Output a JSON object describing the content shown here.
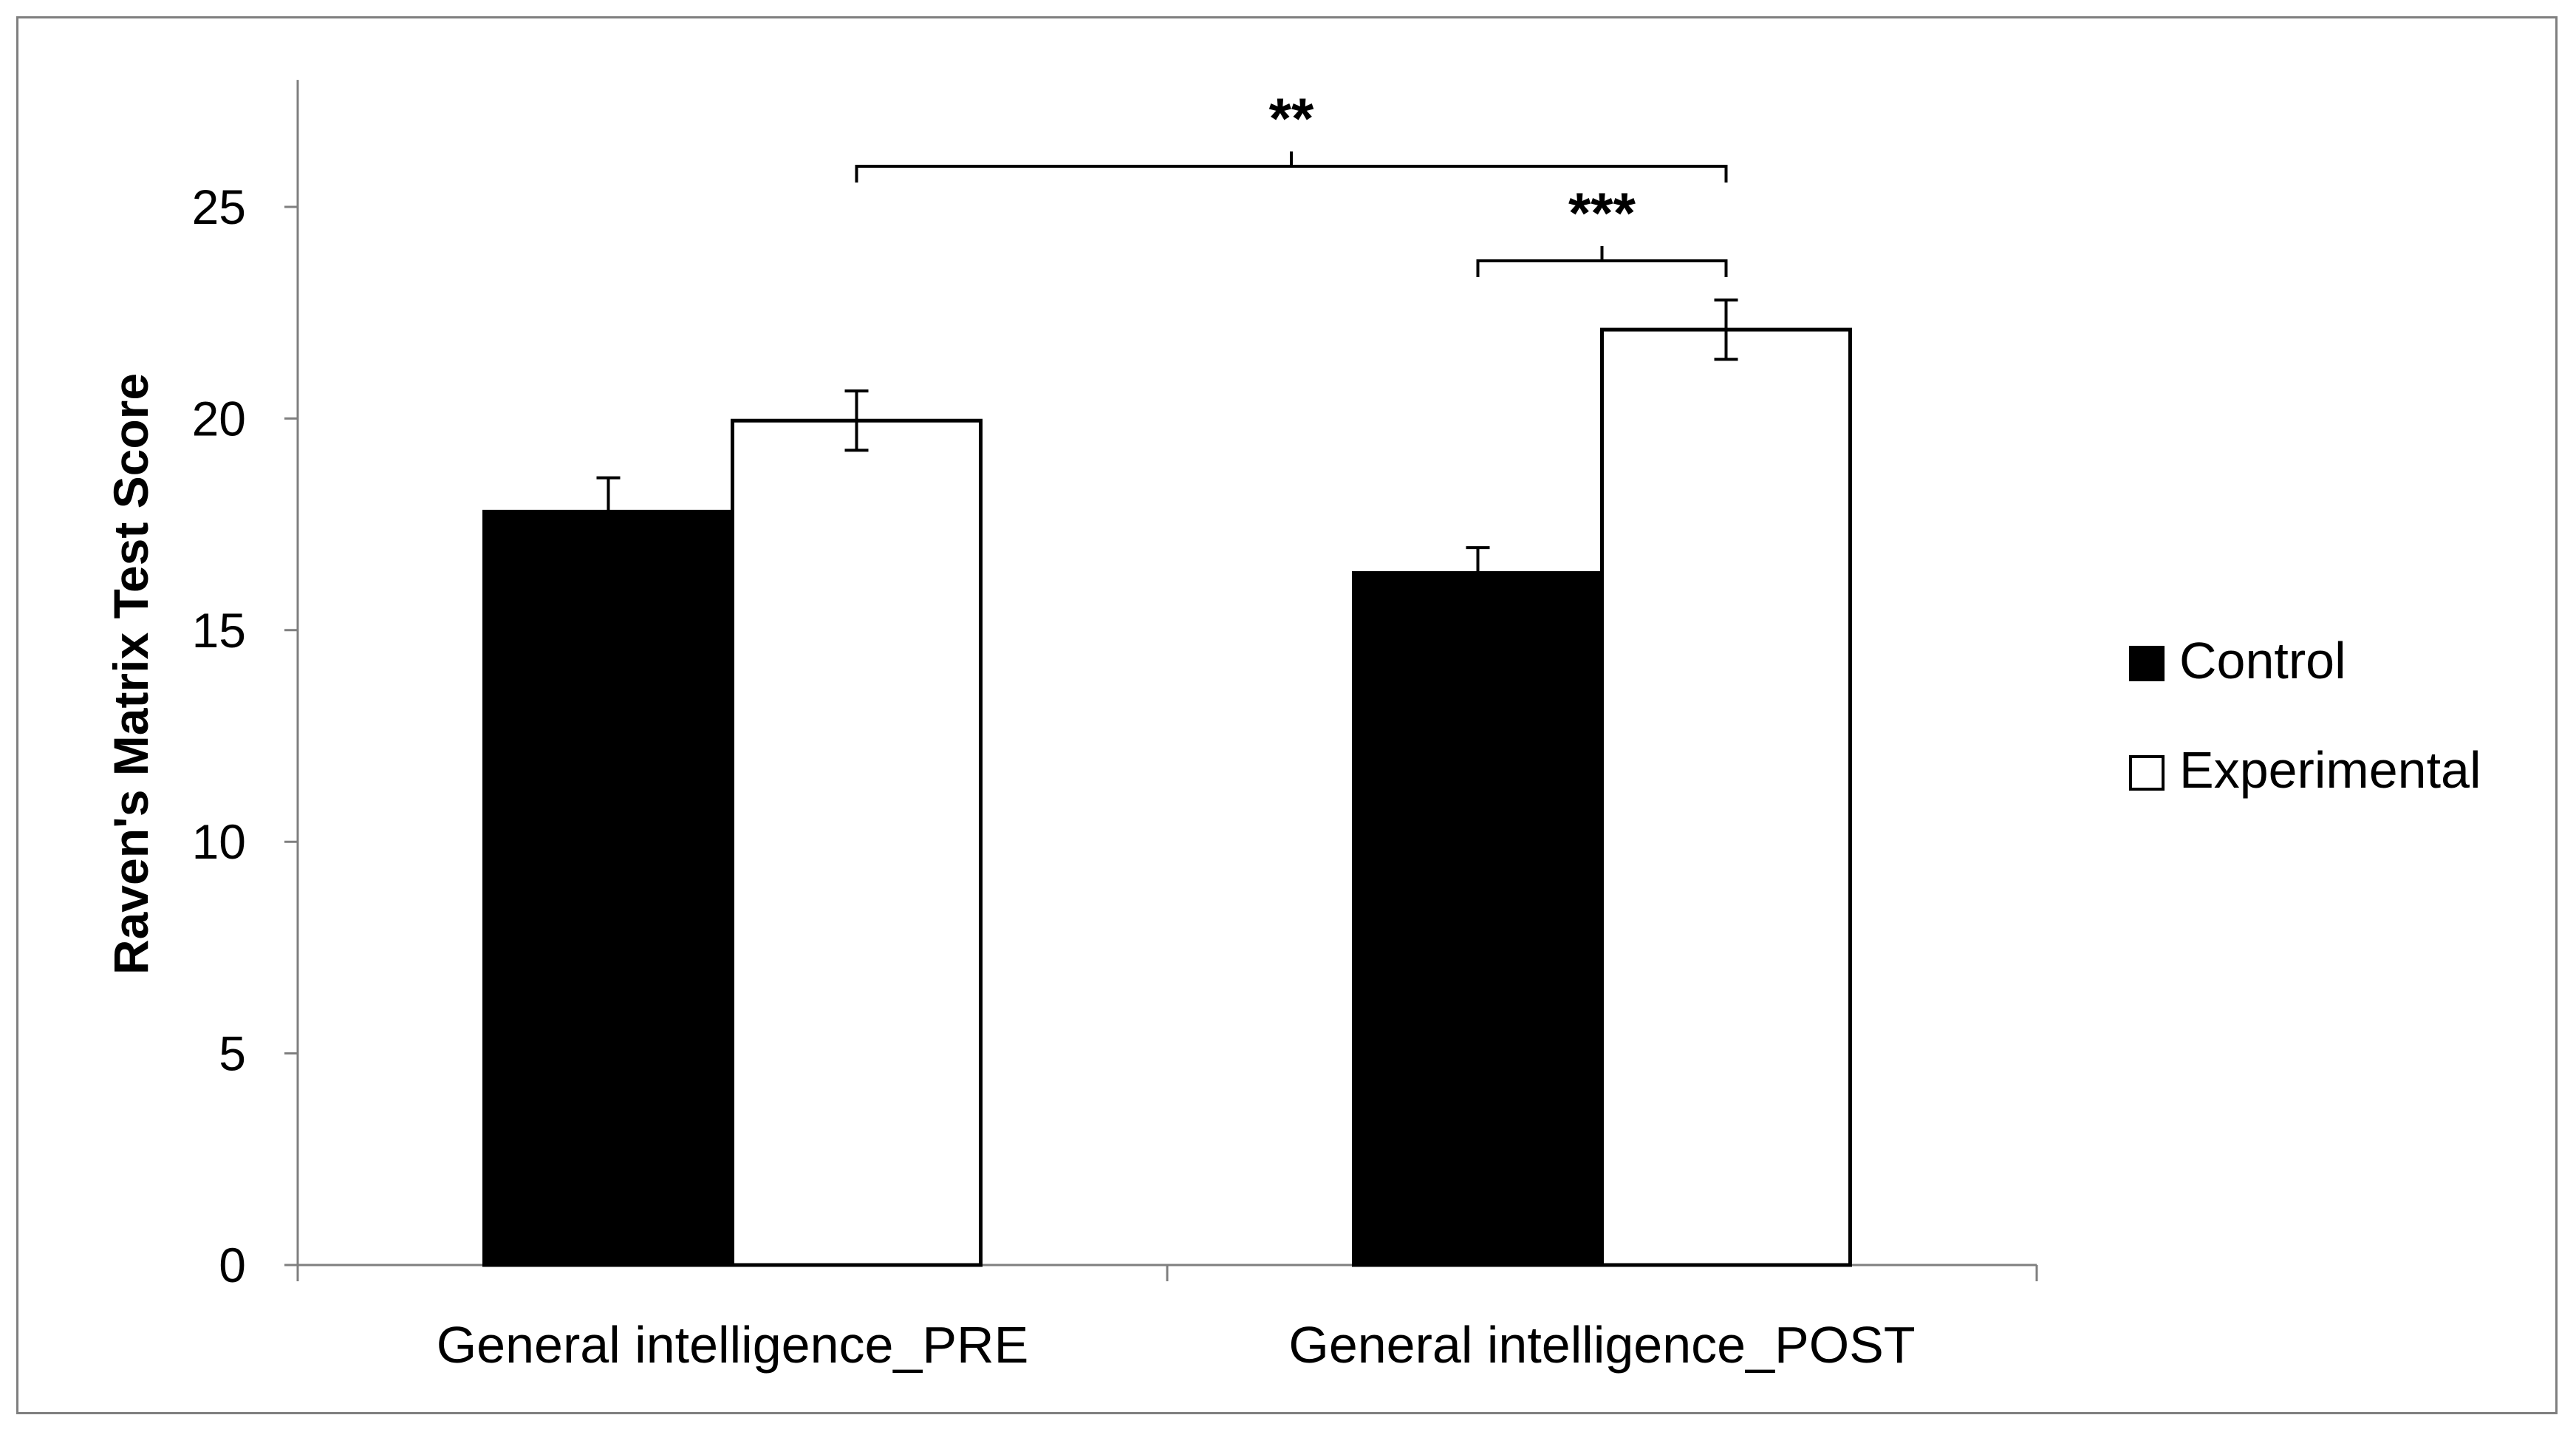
{
  "chart_data": {
    "type": "bar",
    "title": "",
    "xlabel": "",
    "ylabel": "Raven's Matrix Test Score",
    "ylim": [
      0,
      28
    ],
    "yticks": [
      0,
      5,
      10,
      15,
      20,
      25
    ],
    "grid": false,
    "legend_position": "right",
    "categories": [
      "General intelligence_PRE",
      "General intelligence_POST"
    ],
    "series": [
      {
        "name": "Control",
        "color": "#000000",
        "values": [
          17.8,
          16.35
        ],
        "errors": [
          0.8,
          0.6
        ]
      },
      {
        "name": "Experimental",
        "color": "#ffffff",
        "values": [
          19.95,
          22.1
        ],
        "errors": [
          0.7,
          0.7
        ]
      }
    ],
    "annotations": [
      {
        "label": "**",
        "from": {
          "category": 0,
          "series": 1
        },
        "to": {
          "category": 1,
          "series": 1
        }
      },
      {
        "label": "***",
        "from": {
          "category": 1,
          "series": 0
        },
        "to": {
          "category": 1,
          "series": 1
        }
      }
    ]
  }
}
